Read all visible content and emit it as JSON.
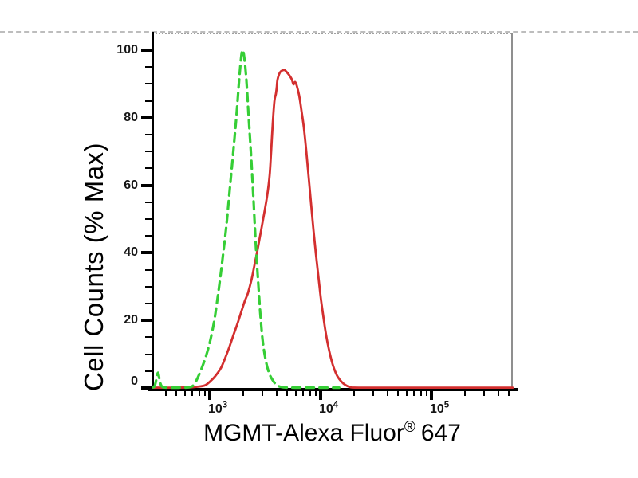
{
  "colors": {
    "red_curve": "#d32f2f",
    "green_curve": "#36ce36",
    "axis": "#000000",
    "right_border_gray": "#8f8f8f",
    "dashed_separator_gray": "#bdbdbd"
  },
  "chart_data": {
    "type": "line",
    "chart_kind": "flow-cytometry-histogram-overlay",
    "title": "",
    "xlabel_main": "MGMT-Alexa Fluor",
    "xlabel_sup": "®",
    "xlabel_suffix": "647",
    "ylabel": "Cell Counts (% Max)",
    "x_scale": "log",
    "xlim": [
      310,
      560000
    ],
    "ylim": [
      0,
      100
    ],
    "grid": false,
    "legend": "none",
    "x_major_ticks": [
      1000,
      10000,
      100000
    ],
    "x_major_tick_labels": [
      {
        "base": "10",
        "exp": "3"
      },
      {
        "base": "10",
        "exp": "4"
      },
      {
        "base": "10",
        "exp": "5"
      }
    ],
    "x_minor_ticks": [
      400,
      500,
      600,
      700,
      800,
      900,
      2000,
      3000,
      4000,
      5000,
      6000,
      7000,
      8000,
      9000,
      20000,
      30000,
      40000,
      50000,
      60000,
      70000,
      80000,
      90000,
      200000,
      300000,
      400000,
      500000
    ],
    "y_major_ticks": [
      0,
      20,
      40,
      60,
      80,
      100
    ],
    "y_minor_tick_step": 5,
    "series": [
      {
        "id": "red-solid-sample",
        "style": "solid",
        "color": "#d32f2f",
        "points": [
          [
            308,
            0.1
          ],
          [
            486,
            0.1
          ],
          [
            683,
            0.2
          ],
          [
            833,
            0.5
          ],
          [
            920,
            0.9
          ],
          [
            1020,
            2.1
          ],
          [
            1120,
            3.5
          ],
          [
            1260,
            5.9
          ],
          [
            1390,
            9.2
          ],
          [
            1510,
            12.3
          ],
          [
            1640,
            15.8
          ],
          [
            1790,
            19.3
          ],
          [
            1940,
            22.9
          ],
          [
            2070,
            25.7
          ],
          [
            2210,
            28.1
          ],
          [
            2370,
            31.8
          ],
          [
            2530,
            36.3
          ],
          [
            2700,
            41.0
          ],
          [
            2880,
            46.0
          ],
          [
            3080,
            51.2
          ],
          [
            3300,
            57.1
          ],
          [
            3470,
            63.0
          ],
          [
            3580,
            70.0
          ],
          [
            3700,
            78.3
          ],
          [
            3830,
            84.9
          ],
          [
            3950,
            87.0
          ],
          [
            4020,
            88.9
          ],
          [
            4090,
            91.3
          ],
          [
            4295,
            93.4
          ],
          [
            4520,
            94.0
          ],
          [
            4740,
            94.1
          ],
          [
            4990,
            93.4
          ],
          [
            5240,
            92.5
          ],
          [
            5510,
            91.3
          ],
          [
            5690,
            89.9
          ],
          [
            5890,
            90.6
          ],
          [
            6080,
            89.6
          ],
          [
            6300,
            87.7
          ],
          [
            6500,
            85.4
          ],
          [
            6710,
            82.3
          ],
          [
            7060,
            77.1
          ],
          [
            7430,
            70.0
          ],
          [
            7800,
            62.5
          ],
          [
            8200,
            54.7
          ],
          [
            8610,
            46.9
          ],
          [
            9060,
            39.9
          ],
          [
            9510,
            33.5
          ],
          [
            10000,
            27.1
          ],
          [
            10520,
            21.7
          ],
          [
            11040,
            17.0
          ],
          [
            11610,
            13.0
          ],
          [
            12420,
            8.7
          ],
          [
            13240,
            5.7
          ],
          [
            14160,
            3.5
          ],
          [
            15380,
            1.9
          ],
          [
            16710,
            0.9
          ],
          [
            18750,
            0.2
          ],
          [
            22130,
            0.1
          ],
          [
            50000,
            0.1
          ],
          [
            150000,
            0.1
          ],
          [
            540000,
            0.1
          ]
        ]
      },
      {
        "id": "green-dashed-control",
        "style": "dashed",
        "color": "#36ce36",
        "points": [
          [
            308,
            0.2
          ],
          [
            318,
            0.5
          ],
          [
            330,
            2.6
          ],
          [
            341,
            4.5
          ],
          [
            352,
            2.6
          ],
          [
            363,
            0.9
          ],
          [
            381,
            0.2
          ],
          [
            447,
            0.1
          ],
          [
            525,
            0.1
          ],
          [
            650,
            0.2
          ],
          [
            718,
            0.9
          ],
          [
            780,
            3.1
          ],
          [
            847,
            5.9
          ],
          [
            920,
            9.2
          ],
          [
            1000,
            13.4
          ],
          [
            1090,
            19.3
          ],
          [
            1160,
            25.2
          ],
          [
            1240,
            32.3
          ],
          [
            1330,
            40.6
          ],
          [
            1420,
            48.8
          ],
          [
            1510,
            58.3
          ],
          [
            1620,
            68.9
          ],
          [
            1730,
            79.5
          ],
          [
            1820,
            88.9
          ],
          [
            1910,
            97.2
          ],
          [
            1970,
            100
          ],
          [
            2040,
            98.3
          ],
          [
            2140,
            91.3
          ],
          [
            2250,
            79.5
          ],
          [
            2370,
            67.7
          ],
          [
            2490,
            54.7
          ],
          [
            2610,
            41.7
          ],
          [
            2750,
            30.0
          ],
          [
            2880,
            20.5
          ],
          [
            3030,
            13.0
          ],
          [
            3240,
            7.3
          ],
          [
            3470,
            4.0
          ],
          [
            3770,
            1.9
          ],
          [
            4090,
            0.7
          ],
          [
            4590,
            0.2
          ],
          [
            5890,
            0.1
          ],
          [
            8200,
            0.1
          ],
          [
            11400,
            0.1
          ],
          [
            14700,
            0.1
          ]
        ]
      }
    ]
  }
}
